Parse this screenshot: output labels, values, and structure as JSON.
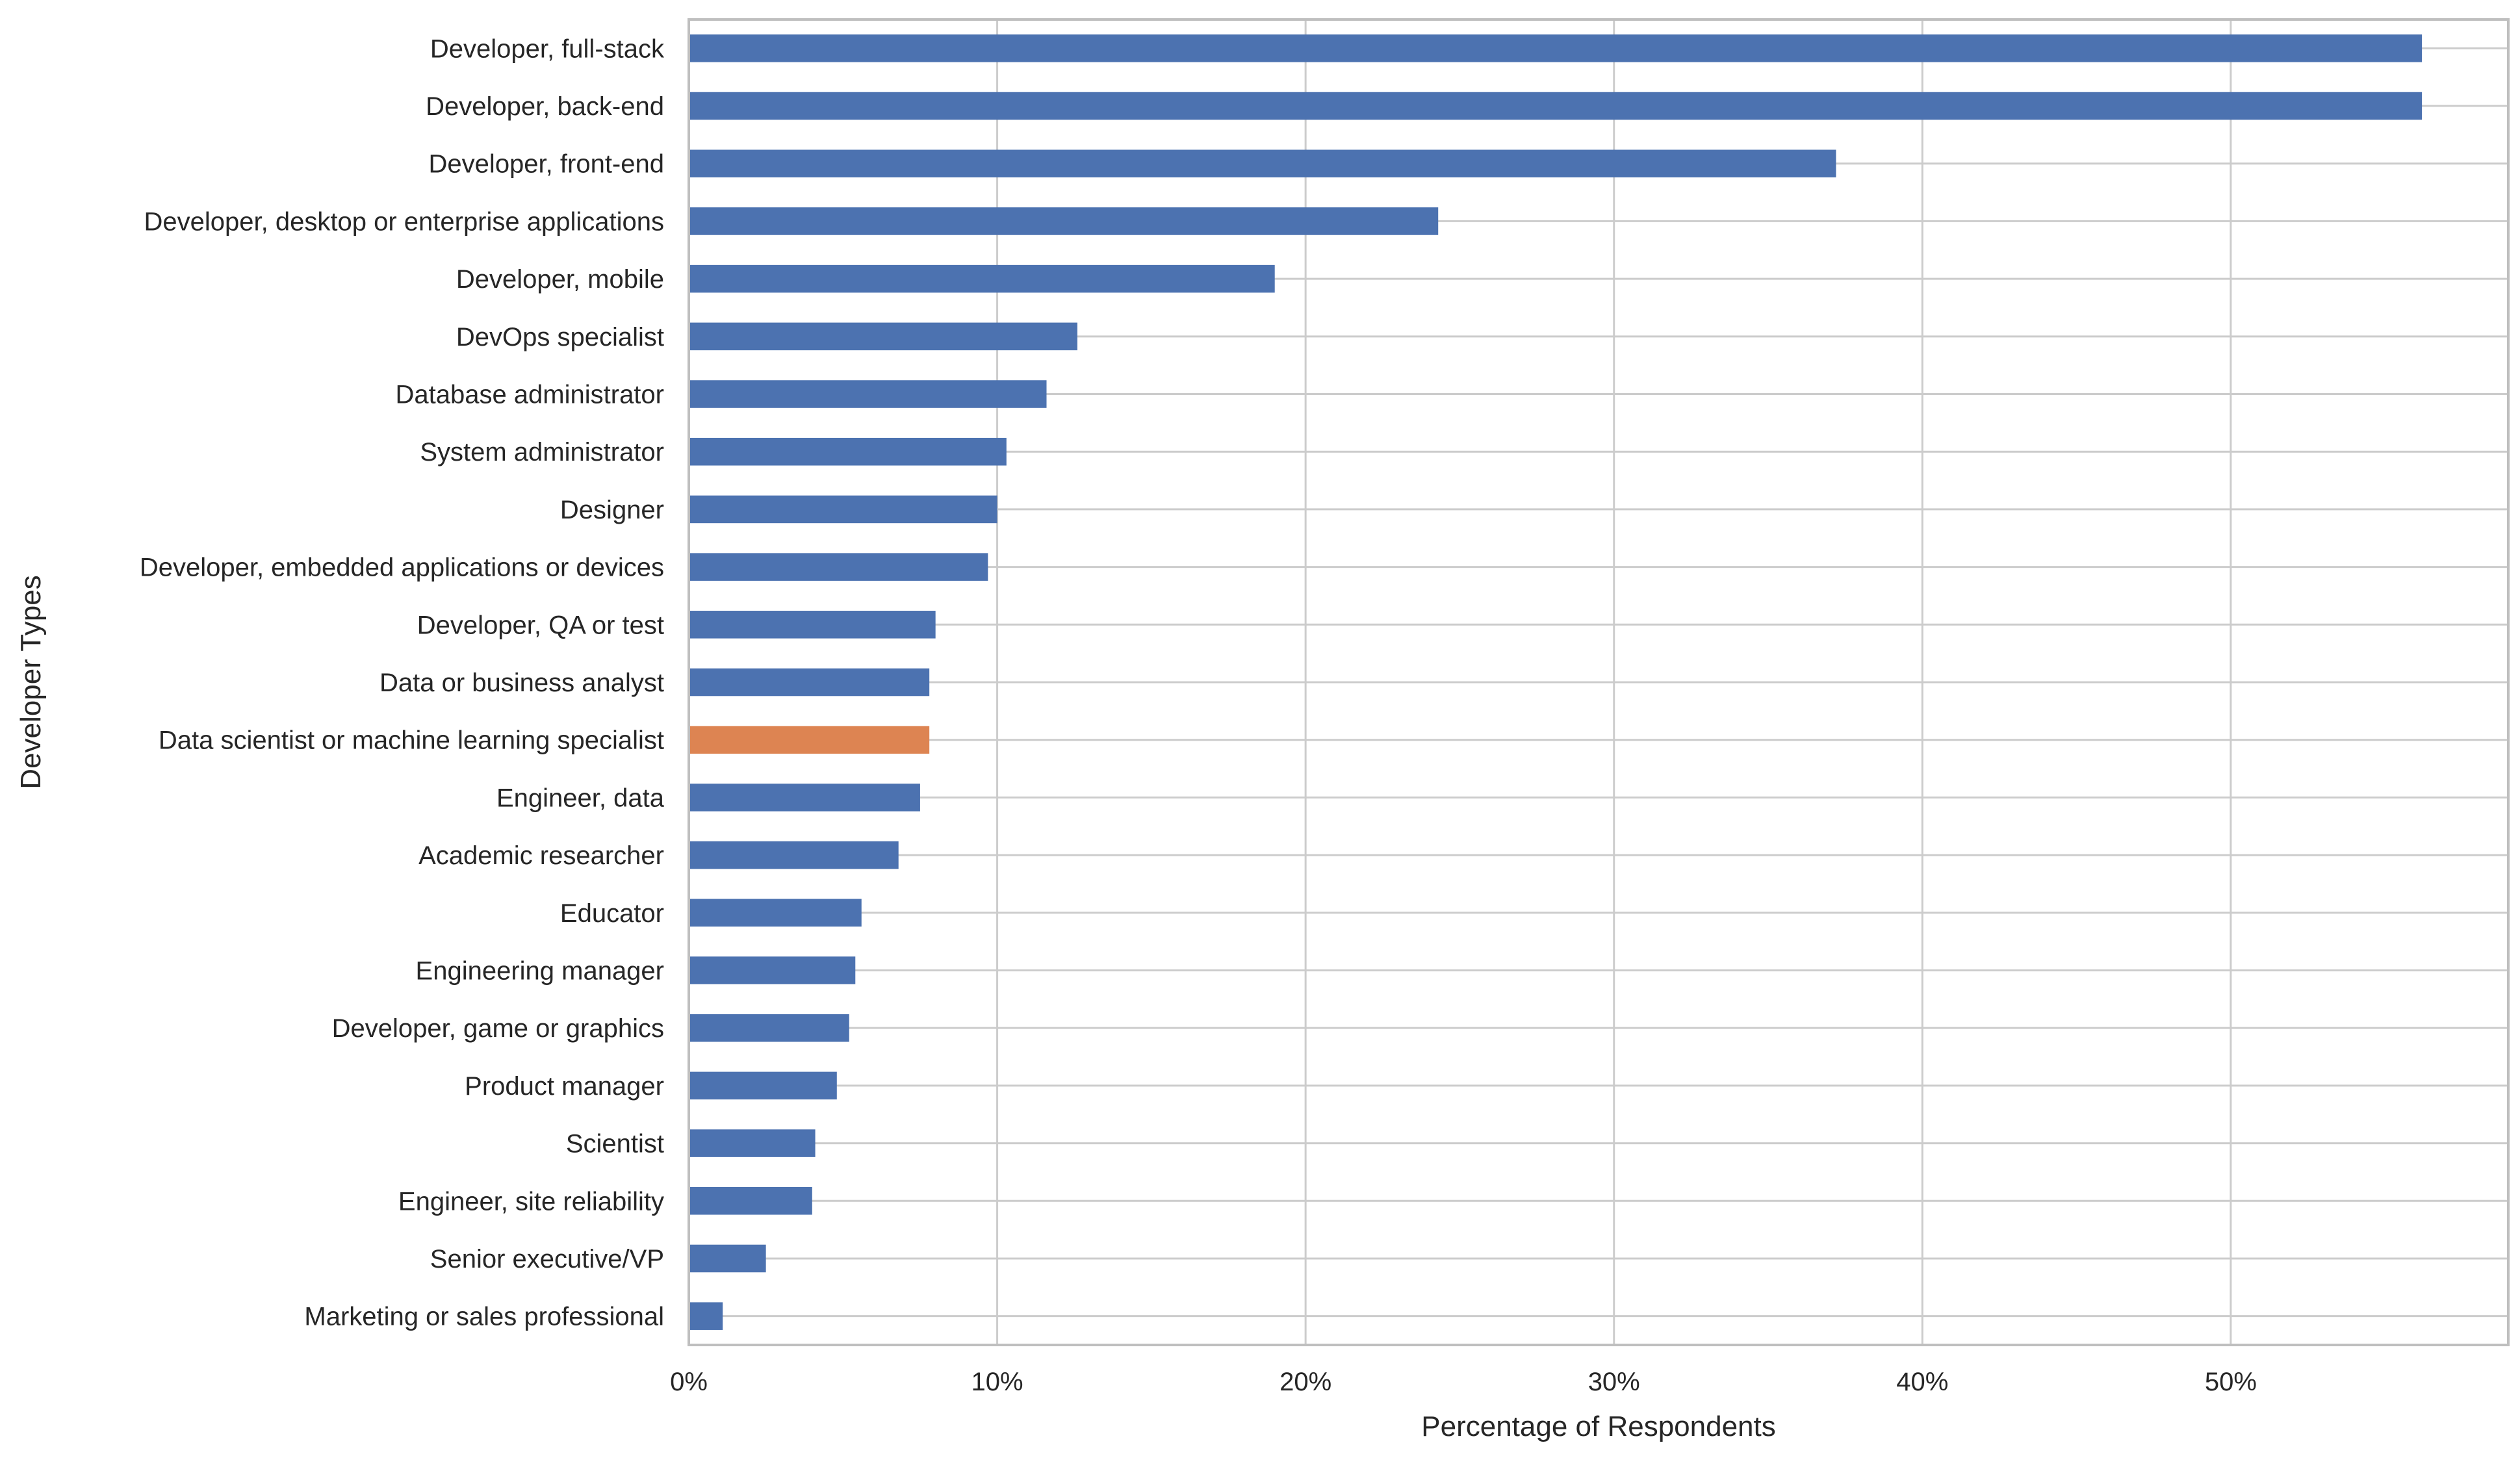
{
  "chart_data": {
    "type": "bar",
    "orientation": "horizontal",
    "xlabel": "Percentage of Respondents",
    "ylabel": "Developer Types",
    "xlim": [
      0,
      59
    ],
    "xticks": [
      0,
      10,
      20,
      30,
      40,
      50
    ],
    "xtick_labels": [
      "0%",
      "10%",
      "20%",
      "30%",
      "40%",
      "50%"
    ],
    "grid": true,
    "colors": {
      "default": "#4c72b0",
      "highlight": "#dd8452",
      "grid": "#cccccc",
      "axis": "#bfbfbf"
    },
    "highlight_category": "Data scientist or machine learning specialist",
    "categories": [
      "Developer, full-stack",
      "Developer, back-end",
      "Developer, front-end",
      "Developer, desktop or enterprise applications",
      "Developer, mobile",
      "DevOps specialist",
      "Database administrator",
      "System administrator",
      "Designer",
      "Developer, embedded applications or devices",
      "Developer, QA or test",
      "Data or business analyst",
      "Data scientist or machine learning specialist",
      "Engineer, data",
      "Academic researcher",
      "Educator",
      "Engineering manager",
      "Developer, game or graphics",
      "Product manager",
      "Scientist",
      "Engineer, site reliability",
      "Senior executive/VP",
      "Marketing or sales professional"
    ],
    "values": [
      56.2,
      56.2,
      37.2,
      24.3,
      19.0,
      12.6,
      11.6,
      10.3,
      10.0,
      9.7,
      8.0,
      7.8,
      7.8,
      7.5,
      6.8,
      5.6,
      5.4,
      5.2,
      4.8,
      4.1,
      4.0,
      2.5,
      1.1
    ]
  }
}
